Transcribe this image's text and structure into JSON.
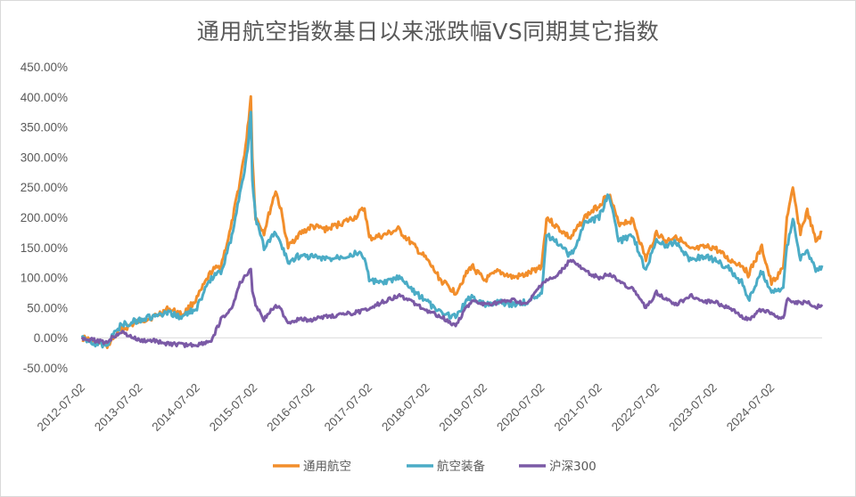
{
  "chart_data": {
    "type": "line",
    "title": "通用航空指数基日以来涨跌幅VS同期其它指数",
    "xlabel": "",
    "ylabel": "",
    "ylim": [
      -50,
      450
    ],
    "y_ticks": [
      "-50.00%",
      "0.00%",
      "50.00%",
      "100.00%",
      "150.00%",
      "200.00%",
      "250.00%",
      "300.00%",
      "350.00%",
      "400.00%",
      "450.00%"
    ],
    "y_tick_values": [
      -50,
      0,
      50,
      100,
      150,
      200,
      250,
      300,
      350,
      400,
      450
    ],
    "x_ticks": [
      "2012-07-02",
      "2013-07-02",
      "2014-07-02",
      "2015-07-02",
      "2016-07-02",
      "2017-07-02",
      "2018-07-02",
      "2019-07-02",
      "2020-07-02",
      "2021-07-02",
      "2022-07-02",
      "2023-07-02",
      "2024-07-02"
    ],
    "grid": false,
    "legend_position": "bottom",
    "series": [
      {
        "name": "通用航空",
        "color": "#F28E2B",
        "x": [
          "2012-07-02",
          "2012-10-02",
          "2012-12-02",
          "2013-03-02",
          "2013-07-02",
          "2013-10-02",
          "2014-01-02",
          "2014-04-02",
          "2014-07-02",
          "2014-10-02",
          "2014-12-02",
          "2015-02-02",
          "2015-04-02",
          "2015-05-15",
          "2015-06-10",
          "2015-06-20",
          "2015-07-10",
          "2015-09-02",
          "2015-11-15",
          "2015-12-20",
          "2016-02-02",
          "2016-04-02",
          "2016-07-02",
          "2016-10-02",
          "2017-01-02",
          "2017-04-02",
          "2017-06-02",
          "2017-07-02",
          "2017-10-02",
          "2018-01-02",
          "2018-04-02",
          "2018-07-02",
          "2018-10-02",
          "2019-01-02",
          "2019-02-25",
          "2019-04-15",
          "2019-07-02",
          "2019-10-02",
          "2020-01-02",
          "2020-04-02",
          "2020-07-02",
          "2020-08-02",
          "2020-10-02",
          "2021-01-02",
          "2021-04-02",
          "2021-07-02",
          "2021-09-02",
          "2021-11-02",
          "2022-02-02",
          "2022-04-26",
          "2022-07-02",
          "2022-09-02",
          "2022-11-02",
          "2023-02-02",
          "2023-05-02",
          "2023-07-02",
          "2023-10-02",
          "2024-01-02",
          "2024-02-05",
          "2024-05-02",
          "2024-07-02",
          "2024-09-15",
          "2024-10-08",
          "2024-11-15",
          "2025-01-02",
          "2025-02-15",
          "2025-04-10",
          "2025-05-20"
        ],
        "values": [
          0,
          -8,
          -15,
          12,
          28,
          35,
          48,
          38,
          65,
          110,
          120,
          180,
          260,
          330,
          400,
          300,
          200,
          175,
          245,
          210,
          150,
          170,
          185,
          180,
          190,
          200,
          215,
          165,
          170,
          180,
          155,
          130,
          95,
          75,
          100,
          120,
          95,
          110,
          100,
          105,
          120,
          200,
          185,
          165,
          200,
          220,
          240,
          190,
          195,
          130,
          175,
          160,
          170,
          145,
          150,
          150,
          130,
          120,
          105,
          150,
          90,
          115,
          200,
          245,
          175,
          210,
          160,
          175
        ]
      },
      {
        "name": "航空装备",
        "color": "#4BACC6",
        "x": [
          "2012-07-02",
          "2012-10-02",
          "2012-12-02",
          "2013-03-02",
          "2013-07-02",
          "2013-10-02",
          "2014-01-02",
          "2014-04-02",
          "2014-07-02",
          "2014-10-02",
          "2014-12-02",
          "2015-02-02",
          "2015-04-02",
          "2015-05-15",
          "2015-06-10",
          "2015-06-20",
          "2015-07-10",
          "2015-09-02",
          "2015-11-15",
          "2015-12-20",
          "2016-02-02",
          "2016-04-02",
          "2016-07-02",
          "2016-10-02",
          "2017-01-02",
          "2017-04-02",
          "2017-06-02",
          "2017-07-02",
          "2017-10-02",
          "2018-01-02",
          "2018-04-02",
          "2018-07-02",
          "2018-10-02",
          "2019-01-02",
          "2019-02-25",
          "2019-04-15",
          "2019-07-02",
          "2019-10-02",
          "2020-01-02",
          "2020-04-02",
          "2020-07-02",
          "2020-08-02",
          "2020-10-02",
          "2021-01-02",
          "2021-04-02",
          "2021-07-02",
          "2021-09-02",
          "2021-11-02",
          "2022-02-02",
          "2022-04-26",
          "2022-07-02",
          "2022-09-02",
          "2022-11-02",
          "2023-02-02",
          "2023-05-02",
          "2023-07-02",
          "2023-10-02",
          "2024-01-02",
          "2024-02-05",
          "2024-05-02",
          "2024-07-02",
          "2024-09-15",
          "2024-10-08",
          "2024-11-15",
          "2025-01-02",
          "2025-02-15",
          "2025-04-10",
          "2025-05-20"
        ],
        "values": [
          0,
          -10,
          -12,
          20,
          30,
          35,
          40,
          35,
          50,
          100,
          110,
          160,
          240,
          300,
          370,
          260,
          200,
          150,
          175,
          155,
          125,
          135,
          135,
          130,
          135,
          140,
          135,
          95,
          90,
          100,
          80,
          60,
          40,
          35,
          55,
          70,
          55,
          60,
          55,
          60,
          75,
          170,
          160,
          135,
          190,
          200,
          240,
          160,
          170,
          110,
          165,
          150,
          160,
          130,
          135,
          130,
          115,
          90,
          60,
          110,
          75,
          85,
          150,
          200,
          130,
          145,
          110,
          120
        ]
      },
      {
        "name": "沪深300",
        "color": "#7B5AA6",
        "x": [
          "2012-07-02",
          "2012-10-02",
          "2012-12-02",
          "2013-03-02",
          "2013-07-02",
          "2013-10-02",
          "2014-01-02",
          "2014-04-02",
          "2014-07-02",
          "2014-10-02",
          "2014-12-02",
          "2015-02-02",
          "2015-04-02",
          "2015-05-15",
          "2015-06-10",
          "2015-06-20",
          "2015-07-10",
          "2015-09-02",
          "2015-11-15",
          "2015-12-20",
          "2016-02-02",
          "2016-04-02",
          "2016-07-02",
          "2016-10-02",
          "2017-01-02",
          "2017-04-02",
          "2017-06-02",
          "2017-07-02",
          "2017-10-02",
          "2018-01-02",
          "2018-04-02",
          "2018-07-02",
          "2018-10-02",
          "2019-01-02",
          "2019-02-25",
          "2019-04-15",
          "2019-07-02",
          "2019-10-02",
          "2020-01-02",
          "2020-04-02",
          "2020-07-02",
          "2020-08-02",
          "2020-10-02",
          "2021-01-02",
          "2021-04-02",
          "2021-07-02",
          "2021-09-02",
          "2021-11-02",
          "2022-02-02",
          "2022-04-26",
          "2022-07-02",
          "2022-09-02",
          "2022-11-02",
          "2023-02-02",
          "2023-05-02",
          "2023-07-02",
          "2023-10-02",
          "2024-01-02",
          "2024-02-05",
          "2024-05-02",
          "2024-07-02",
          "2024-09-15",
          "2024-10-08",
          "2024-11-15",
          "2025-01-02",
          "2025-02-15",
          "2025-04-10",
          "2025-05-20"
        ],
        "values": [
          0,
          -5,
          -8,
          10,
          -5,
          -5,
          -10,
          -12,
          -12,
          -5,
          30,
          45,
          90,
          105,
          115,
          80,
          55,
          30,
          55,
          45,
          25,
          30,
          30,
          35,
          38,
          42,
          45,
          50,
          60,
          70,
          60,
          45,
          35,
          20,
          45,
          60,
          55,
          58,
          62,
          55,
          90,
          95,
          100,
          130,
          110,
          100,
          105,
          95,
          80,
          50,
          75,
          65,
          55,
          70,
          60,
          60,
          50,
          35,
          30,
          48,
          40,
          30,
          65,
          60,
          58,
          60,
          50,
          55
        ]
      }
    ]
  }
}
